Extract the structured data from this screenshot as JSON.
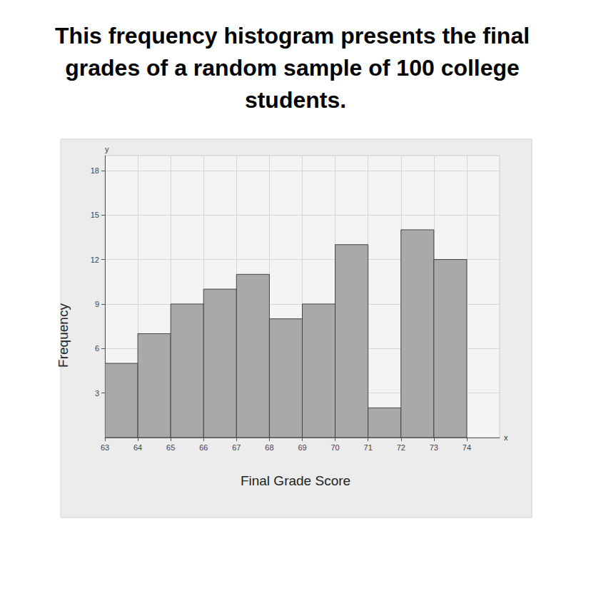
{
  "chart_data": {
    "type": "histogram",
    "title": "This frequency histogram presents the final grades of a random sample of 100 college students.",
    "xlabel": "Final Grade Score",
    "ylabel": "Frequency",
    "annotations": [
      "y",
      "x"
    ],
    "bins": [
      63,
      64,
      65,
      66,
      67,
      68,
      69,
      70,
      71,
      72,
      73,
      74
    ],
    "values": [
      5,
      7,
      9,
      10,
      11,
      8,
      9,
      13,
      2,
      14,
      12
    ],
    "color": "#a9a9a9",
    "xlim": [
      63,
      75
    ],
    "xticks": [
      63,
      64,
      65,
      66,
      67,
      68,
      69,
      70,
      71,
      72,
      73,
      74
    ],
    "ylim": [
      0,
      19
    ],
    "yticks": [
      3,
      6,
      9,
      12,
      15,
      18
    ],
    "grid": true
  }
}
